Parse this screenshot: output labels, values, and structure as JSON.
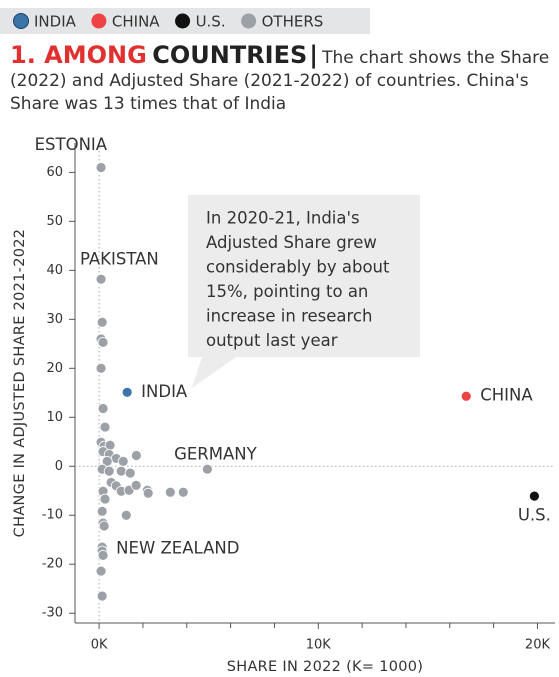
{
  "chart_data": {
    "type": "scatter",
    "title_highlight": "1. AMONG",
    "title": "COUNTRIES",
    "subtitle": "The chart shows the Share (2022) and Adjusted Share (2021-2022) of countries. China's Share was 13 times that of India",
    "x_label": "SHARE IN 2022 (K= 1000)",
    "y_label": "CHANGE IN ADJUSTED SHARE 2021-2022",
    "annotation": [
      "In 2020-21, India's",
      "Adjusted Share grew",
      "considerably by about",
      "15%, pointing to an",
      "increase in research",
      "output last year"
    ],
    "xlim": [
      -1100,
      20800
    ],
    "ylim": [
      -32,
      66
    ],
    "xticks": [
      {
        "value": 0,
        "label": "0K"
      },
      {
        "value": 10000,
        "label": "10K"
      },
      {
        "value": 20000,
        "label": "20K"
      }
    ],
    "xminorticks": [
      2000,
      4000,
      6000,
      8000,
      12000,
      14000,
      16000,
      18000
    ],
    "yticks": [
      60,
      50,
      40,
      30,
      20,
      10,
      0,
      -10,
      -20,
      -30
    ],
    "reference_lines": {
      "x": 0,
      "y": 0
    },
    "series": [
      {
        "name": "INDIA",
        "color": "#3b74a8",
        "x": [
          1280
        ],
        "y": [
          15.1
        ],
        "labels": [
          "INDIA"
        ]
      },
      {
        "name": "CHINA",
        "color": "#ee4245",
        "x": [
          16750
        ],
        "y": [
          14.3
        ],
        "labels": [
          "CHINA"
        ]
      },
      {
        "name": "U.S.",
        "color": "#111111",
        "x": [
          19860
        ],
        "y": [
          -6.1
        ],
        "labels": [
          "U.S."
        ]
      },
      {
        "name": "OTHERS",
        "color": "#9ca1a7",
        "x": [
          90,
          90,
          140,
          90,
          180,
          90,
          180,
          270,
          90,
          230,
          500,
          180,
          460,
          780,
          370,
          1100,
          1700,
          140,
          460,
          1010,
          1420,
          4940,
          550,
          780,
          180,
          1010,
          1370,
          1690,
          2200,
          2240,
          3250,
          3840,
          270,
          140,
          1240,
          180,
          230,
          140,
          140,
          180,
          90,
          140
        ],
        "y": [
          61,
          38.2,
          29.4,
          26,
          25.3,
          20,
          11.8,
          8,
          4.9,
          4.1,
          4.3,
          3,
          2.4,
          1.6,
          1,
          1,
          2.2,
          -0.6,
          -1,
          -1,
          -1.4,
          -0.6,
          -3.3,
          -4,
          -5.1,
          -5.1,
          -4.9,
          -3.9,
          -4.9,
          -5.5,
          -5.3,
          -5.3,
          -6.7,
          -9.2,
          -10,
          -11.6,
          -12.2,
          -16.5,
          -17.3,
          -18.2,
          -21.4,
          -26.5
        ],
        "labels": [
          "ESTONIA",
          "PAKISTAN",
          null,
          null,
          null,
          null,
          null,
          null,
          null,
          null,
          null,
          null,
          null,
          null,
          null,
          null,
          null,
          null,
          null,
          null,
          null,
          "GERMANY",
          null,
          null,
          null,
          null,
          null,
          null,
          null,
          null,
          null,
          null,
          null,
          null,
          null,
          null,
          null,
          "NEW ZEALAND",
          null,
          null,
          null,
          null
        ]
      }
    ]
  }
}
